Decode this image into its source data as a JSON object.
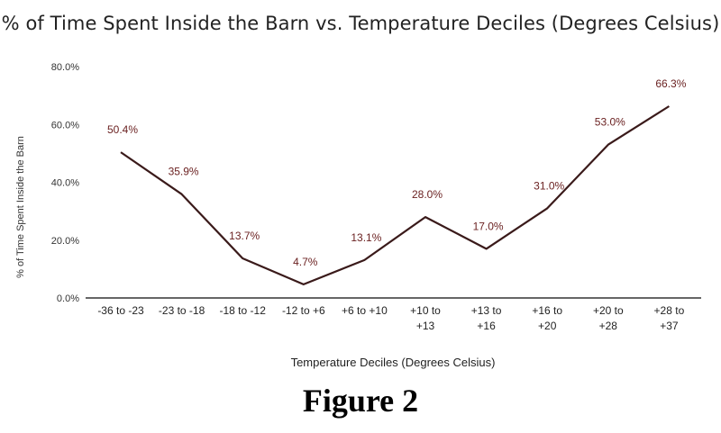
{
  "chart_data": {
    "type": "line",
    "title": "% of Time Spent Inside the Barn vs. Temperature Deciles (Degrees Celsius)",
    "xlabel": "Temperature Deciles (Degrees Celsius)",
    "ylabel": "% of Time Spent Inside the Barn",
    "categories": [
      [
        "-36 to -23"
      ],
      [
        "-23 to -18"
      ],
      [
        "-18 to -12"
      ],
      [
        "-12 to +6"
      ],
      [
        "+6 to +10"
      ],
      [
        "+10 to",
        "+13"
      ],
      [
        "+13 to",
        "+16"
      ],
      [
        "+16 to",
        "+20"
      ],
      [
        "+20 to",
        "+28"
      ],
      [
        "+28 to",
        "+37"
      ]
    ],
    "values": [
      50.4,
      35.9,
      13.7,
      4.7,
      13.1,
      28.0,
      17.0,
      31.0,
      53.0,
      66.3
    ],
    "data_labels": [
      "50.4%",
      "35.9%",
      "13.7%",
      "4.7%",
      "13.1%",
      "28.0%",
      "17.0%",
      "31.0%",
      "53.0%",
      "66.3%"
    ],
    "yticks": [
      "0.0%",
      "20.0%",
      "40.0%",
      "60.0%",
      "80.0%"
    ],
    "ylim": [
      0,
      80
    ],
    "grid": false,
    "line_color": "#3a1a1a",
    "label_color": "#6b2222"
  },
  "figure_caption": "Figure 2"
}
